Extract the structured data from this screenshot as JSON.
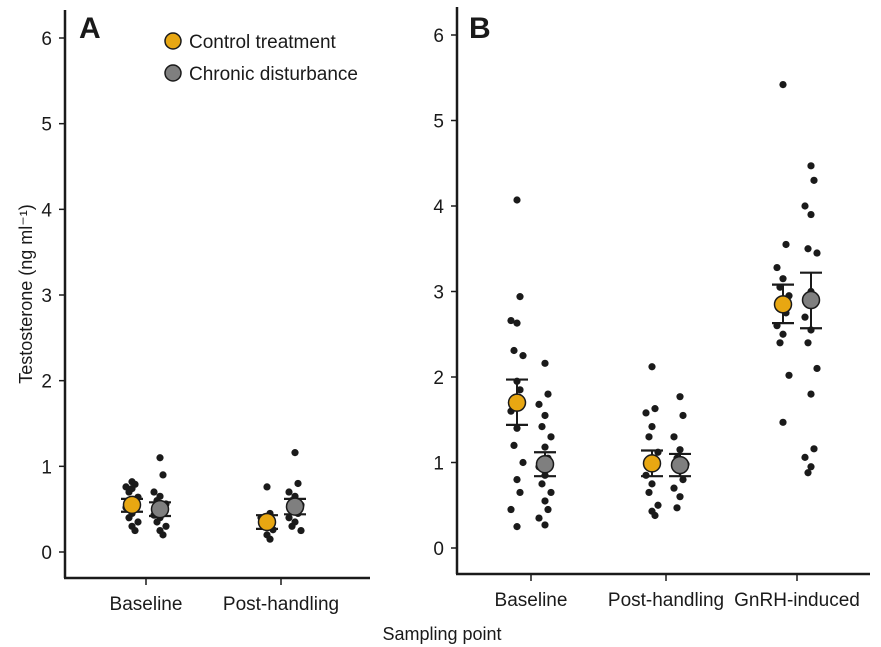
{
  "chart_data": [
    {
      "type": "scatter",
      "panel_label": "A",
      "categories": [
        "Baseline",
        "Post-handling"
      ],
      "ylabel": "Testosterone (ng ml⁻¹)",
      "ylim": [
        0,
        6
      ],
      "yticks": [
        0,
        1,
        2,
        3,
        4,
        5,
        6
      ],
      "grid": false,
      "legend": {
        "placement": "top-right",
        "entries": [
          {
            "name": "Control treatment",
            "color": "#E8A712"
          },
          {
            "name": "Chronic disturbance",
            "color": "#7F7F7F"
          }
        ]
      },
      "series": [
        {
          "name": "Control treatment",
          "color": "#E8A712",
          "means": [
            0.55,
            0.35
          ],
          "se_low": [
            0.47,
            0.27
          ],
          "se_high": [
            0.62,
            0.43
          ],
          "points": [
            [
              0.82,
              0.79,
              0.76,
              0.74,
              0.7,
              0.64,
              0.6,
              0.57,
              0.52,
              0.45,
              0.4,
              0.35,
              0.3,
              0.25
            ],
            [
              0.76,
              0.45,
              0.4,
              0.35,
              0.3,
              0.26,
              0.2,
              0.15
            ]
          ]
        },
        {
          "name": "Chronic disturbance",
          "color": "#7F7F7F",
          "means": [
            0.5,
            0.53
          ],
          "se_low": [
            0.42,
            0.44
          ],
          "se_high": [
            0.58,
            0.62
          ],
          "points": [
            [
              1.1,
              0.9,
              0.7,
              0.65,
              0.6,
              0.56,
              0.52,
              0.48,
              0.43,
              0.4,
              0.35,
              0.3,
              0.25,
              0.2
            ],
            [
              1.16,
              0.8,
              0.7,
              0.65,
              0.6,
              0.55,
              0.5,
              0.45,
              0.4,
              0.35,
              0.3,
              0.25
            ]
          ]
        }
      ]
    },
    {
      "type": "scatter",
      "panel_label": "B",
      "categories": [
        "Baseline",
        "Post-handling",
        "GnRH-induced"
      ],
      "ylim": [
        0,
        6
      ],
      "yticks": [
        0,
        1,
        2,
        3,
        4,
        5,
        6
      ],
      "grid": false,
      "series": [
        {
          "name": "Control treatment",
          "color": "#E8A712",
          "means": [
            1.7,
            0.99,
            2.85
          ],
          "se_low": [
            1.44,
            0.84,
            2.63
          ],
          "se_high": [
            1.97,
            1.14,
            3.08
          ],
          "points": [
            [
              4.07,
              2.94,
              2.66,
              2.63,
              2.31,
              2.25,
              1.95,
              1.85,
              1.6,
              1.4,
              1.2,
              1.0,
              0.8,
              0.65,
              0.45,
              0.25
            ],
            [
              2.12,
              1.63,
              1.58,
              1.42,
              1.3,
              1.12,
              1.0,
              0.95,
              0.85,
              0.75,
              0.65,
              0.5,
              0.43,
              0.38
            ],
            [
              5.42,
              3.55,
              3.28,
              3.15,
              3.05,
              2.95,
              2.85,
              2.75,
              2.6,
              2.5,
              2.4,
              2.02,
              1.47
            ]
          ]
        },
        {
          "name": "Chronic disturbance",
          "color": "#7F7F7F",
          "means": [
            0.98,
            0.97,
            2.9
          ],
          "se_low": [
            0.84,
            0.84,
            2.57
          ],
          "se_high": [
            1.12,
            1.1,
            3.22
          ],
          "points": [
            [
              2.16,
              1.8,
              1.68,
              1.55,
              1.42,
              1.3,
              1.18,
              1.05,
              0.95,
              0.85,
              0.75,
              0.65,
              0.55,
              0.45,
              0.35,
              0.27
            ],
            [
              1.77,
              1.55,
              1.3,
              1.15,
              1.05,
              0.98,
              0.9,
              0.8,
              0.7,
              0.6,
              0.47
            ],
            [
              4.47,
              4.3,
              4.0,
              3.9,
              3.5,
              3.45,
              3.0,
              2.85,
              2.7,
              2.55,
              2.4,
              2.1,
              1.8,
              1.16,
              1.06,
              0.95,
              0.88
            ]
          ]
        }
      ]
    }
  ],
  "shared_xlabel": "Sampling point"
}
